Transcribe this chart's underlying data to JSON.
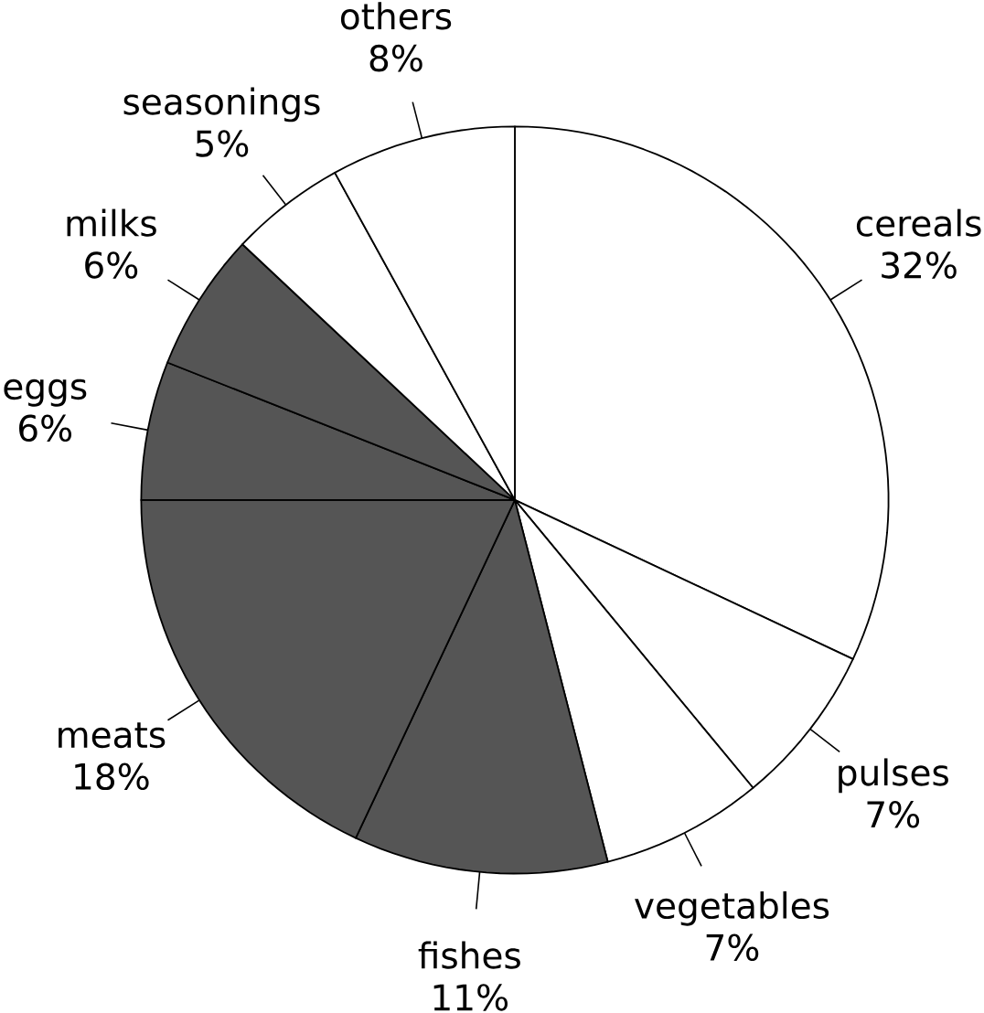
{
  "chart_data": {
    "type": "pie",
    "categories": [
      "cereals",
      "pulses",
      "vegetables",
      "fishes",
      "meats",
      "eggs",
      "milks",
      "seasonings",
      "others"
    ],
    "values": [
      32,
      7,
      7,
      11,
      18,
      6,
      6,
      5,
      8
    ],
    "value_labels": [
      "32%",
      "7%",
      "7%",
      "11%",
      "18%",
      "6%",
      "6%",
      "5%",
      "8%"
    ],
    "colors": [
      "#ffffff",
      "#ffffff",
      "#ffffff",
      "#555555",
      "#555555",
      "#555555",
      "#555555",
      "#ffffff",
      "#ffffff"
    ]
  }
}
